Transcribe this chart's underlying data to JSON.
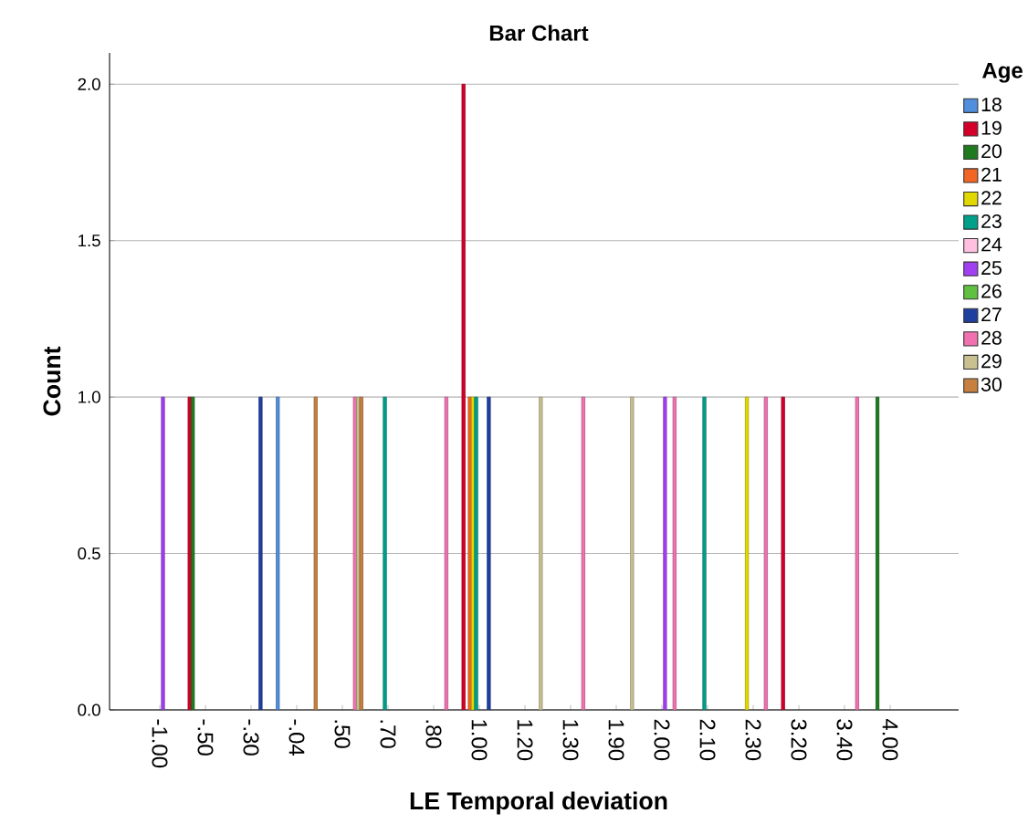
{
  "chart_data": {
    "type": "bar",
    "title": "Bar Chart",
    "xlabel": "LE Temporal deviation",
    "ylabel": "Count",
    "legend_title": "Age",
    "categories": [
      "-1.00",
      "-.50",
      "-.30",
      "-.04",
      ".50",
      ".70",
      ".80",
      "1.00",
      "1.20",
      "1.30",
      "1.90",
      "2.00",
      "2.10",
      "2.30",
      "3.20",
      "3.40",
      "4.00"
    ],
    "series": [
      {
        "name": "18",
        "color": "#4f8fde",
        "values": [
          null,
          null,
          null,
          1,
          null,
          null,
          null,
          null,
          null,
          null,
          null,
          null,
          null,
          null,
          null,
          null,
          null
        ]
      },
      {
        "name": "19",
        "color": "#d4002a",
        "values": [
          null,
          1,
          null,
          null,
          null,
          null,
          null,
          2,
          null,
          null,
          null,
          null,
          null,
          null,
          1,
          null,
          null
        ]
      },
      {
        "name": "20",
        "color": "#1f7a1f",
        "values": [
          null,
          1,
          null,
          null,
          null,
          null,
          null,
          null,
          null,
          null,
          null,
          null,
          null,
          null,
          null,
          null,
          1
        ]
      },
      {
        "name": "21",
        "color": "#f26522",
        "values": [
          null,
          null,
          null,
          null,
          null,
          null,
          null,
          1,
          null,
          null,
          null,
          null,
          null,
          null,
          null,
          null,
          null
        ]
      },
      {
        "name": "22",
        "color": "#e0d800",
        "values": [
          null,
          null,
          null,
          null,
          null,
          null,
          null,
          1,
          null,
          null,
          null,
          null,
          null,
          1,
          null,
          null,
          null
        ]
      },
      {
        "name": "23",
        "color": "#00a08a",
        "values": [
          null,
          null,
          null,
          null,
          null,
          1,
          null,
          1,
          null,
          null,
          null,
          null,
          1,
          null,
          null,
          null,
          null
        ]
      },
      {
        "name": "24",
        "color": "#ffc0e0",
        "values": [
          null,
          null,
          null,
          null,
          null,
          null,
          null,
          null,
          null,
          null,
          null,
          null,
          null,
          null,
          null,
          null,
          null
        ]
      },
      {
        "name": "25",
        "color": "#a040f0",
        "values": [
          1,
          null,
          null,
          null,
          null,
          null,
          null,
          null,
          null,
          null,
          null,
          1,
          null,
          null,
          null,
          null,
          null
        ]
      },
      {
        "name": "26",
        "color": "#60c040",
        "values": [
          null,
          null,
          null,
          null,
          null,
          null,
          null,
          null,
          null,
          null,
          null,
          null,
          null,
          null,
          null,
          null,
          null
        ]
      },
      {
        "name": "27",
        "color": "#2040a0",
        "values": [
          null,
          null,
          1,
          null,
          null,
          null,
          null,
          1,
          null,
          null,
          null,
          null,
          null,
          null,
          null,
          null,
          null
        ]
      },
      {
        "name": "28",
        "color": "#f070b0",
        "values": [
          null,
          null,
          null,
          null,
          1,
          null,
          1,
          null,
          null,
          1,
          null,
          1,
          null,
          1,
          null,
          1,
          null
        ]
      },
      {
        "name": "29",
        "color": "#c8c090",
        "values": [
          null,
          null,
          null,
          null,
          1,
          null,
          null,
          null,
          1,
          null,
          1,
          null,
          null,
          null,
          null,
          null,
          null
        ]
      },
      {
        "name": "30",
        "color": "#c88040",
        "values": [
          null,
          null,
          null,
          1,
          1,
          null,
          null,
          null,
          null,
          null,
          null,
          null,
          null,
          null,
          null,
          null,
          null
        ]
      }
    ],
    "ylim": [
      0,
      2.1
    ],
    "yticks": [
      {
        "value": 0,
        "label": "0.0"
      },
      {
        "value": 0.5,
        "label": "0.5"
      },
      {
        "value": 1,
        "label": "1.0"
      },
      {
        "value": 1.5,
        "label": "1.5"
      },
      {
        "value": 2,
        "label": "2.0"
      }
    ],
    "grid": "y",
    "legend": "right"
  }
}
